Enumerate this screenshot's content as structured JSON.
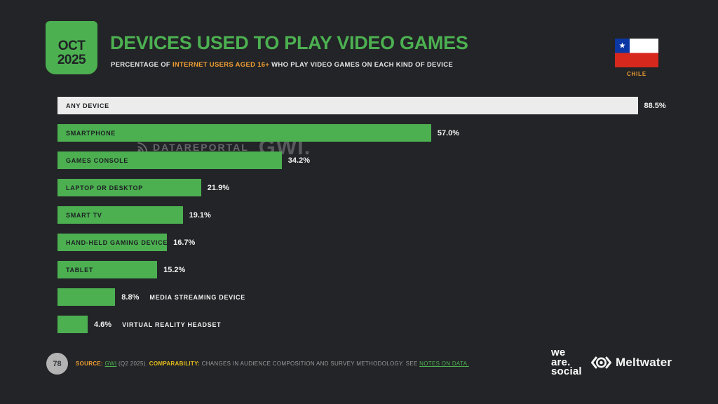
{
  "header": {
    "date_month": "OCT",
    "date_year": "2025",
    "title": "DEVICES USED TO PLAY VIDEO GAMES",
    "subtitle_prefix": "PERCENTAGE OF ",
    "subtitle_highlight": "INTERNET USERS AGED 16+",
    "subtitle_suffix": " WHO PLAY VIDEO GAMES ON EACH KIND OF DEVICE",
    "country_label": "CHILE"
  },
  "chart_data": {
    "type": "bar",
    "orientation": "horizontal",
    "title": "DEVICES USED TO PLAY VIDEO GAMES",
    "unit": "percent of internet users aged 16+",
    "xlim": [
      0,
      100
    ],
    "grid": false,
    "legend": false,
    "categories": [
      "ANY DEVICE",
      "SMARTPHONE",
      "GAMES CONSOLE",
      "LAPTOP OR DESKTOP",
      "SMART TV",
      "HAND-HELD GAMING DEVICE",
      "TABLET",
      "MEDIA STREAMING DEVICE",
      "VIRTUAL REALITY HEADSET"
    ],
    "values": [
      88.5,
      57.0,
      34.2,
      21.9,
      19.1,
      16.7,
      15.2,
      8.8,
      4.6
    ],
    "items": [
      {
        "label": "ANY DEVICE",
        "value": 88.5,
        "display": "88.5%",
        "bar": "light",
        "label_inside": true
      },
      {
        "label": "SMARTPHONE",
        "value": 57.0,
        "display": "57.0%",
        "bar": "green",
        "label_inside": true
      },
      {
        "label": "GAMES CONSOLE",
        "value": 34.2,
        "display": "34.2%",
        "bar": "green",
        "label_inside": true
      },
      {
        "label": "LAPTOP OR DESKTOP",
        "value": 21.9,
        "display": "21.9%",
        "bar": "green",
        "label_inside": true
      },
      {
        "label": "SMART TV",
        "value": 19.1,
        "display": "19.1%",
        "bar": "green",
        "label_inside": true
      },
      {
        "label": "HAND-HELD GAMING DEVICE",
        "value": 16.7,
        "display": "16.7%",
        "bar": "green",
        "label_inside": true
      },
      {
        "label": "TABLET",
        "value": 15.2,
        "display": "15.2%",
        "bar": "green",
        "label_inside": true
      },
      {
        "label": "MEDIA STREAMING DEVICE",
        "value": 8.8,
        "display": "8.8%",
        "bar": "green",
        "label_inside": false
      },
      {
        "label": "VIRTUAL REALITY HEADSET",
        "value": 4.6,
        "display": "4.6%",
        "bar": "green",
        "label_inside": false
      }
    ]
  },
  "watermark": {
    "brand": "DATAREPORTAL",
    "partner_mark": "GWI."
  },
  "footer": {
    "page_number": "78",
    "source_label": "SOURCE:",
    "source_link": "GWI",
    "source_detail": "(Q2 2025).",
    "comparability_label": "COMPARABILITY:",
    "comparability_text": "CHANGES IN AUDIENCE COMPOSITION AND SURVEY METHODOLOGY. SEE",
    "notes_link": "NOTES ON DATA."
  },
  "branding": {
    "we_are_social_lines": [
      "we",
      "are.",
      "social"
    ],
    "meltwater": "Meltwater"
  },
  "colors": {
    "background": "#232427",
    "green": "#4cb051",
    "light_bar": "#ececec",
    "orange": "#ef9e33",
    "yellow": "#e3bd1d",
    "text_light": "#f2f2f2",
    "text_dark": "#1d2023",
    "muted": "#9b9b9b"
  }
}
